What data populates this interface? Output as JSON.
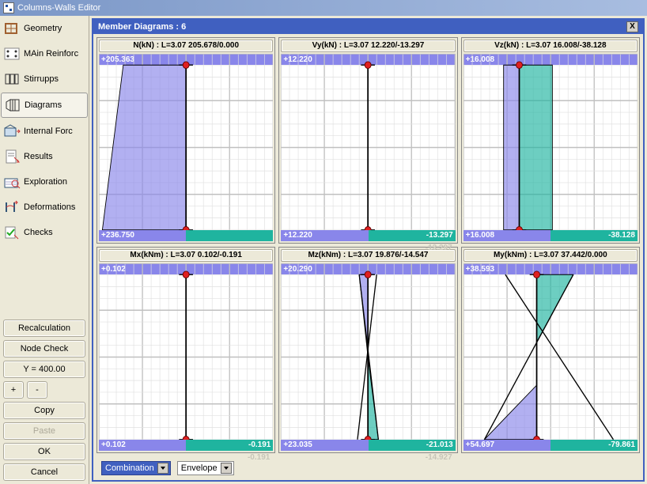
{
  "window_title": "Columns-Walls Editor",
  "panel_title": "Member Diagrams : 6",
  "nav": [
    {
      "label": "Geometry"
    },
    {
      "label": "MAin Reinforc"
    },
    {
      "label": "Stirrupps"
    },
    {
      "label": "Diagrams",
      "active": true
    },
    {
      "label": "Internal Forc"
    },
    {
      "label": "Results"
    },
    {
      "label": "Exploration"
    },
    {
      "label": "Deformations"
    },
    {
      "label": "Checks"
    }
  ],
  "buttons": {
    "recalc": "Recalculation",
    "nodecheck": "Node Check",
    "yfield": "Y = 400.00",
    "plus": "+",
    "minus": "-",
    "copy": "Copy",
    "paste": "Paste",
    "ok": "OK",
    "cancel": "Cancel"
  },
  "dropdowns": {
    "combo": "Combination",
    "envelope": "Envelope"
  },
  "colors": {
    "fill_pos": "#8986ea",
    "fill_neg": "#1fb49f",
    "grid": "#c0c0c0",
    "subgrid": "#e0e0e0",
    "node": "#e02020",
    "line": "#000000",
    "panel_blue": "#4060c0"
  },
  "diagrams": [
    {
      "title": "N(kN) : L=3.07 205.678/0.000",
      "top_left": "+205.363",
      "bot_left": "+236.750",
      "bot_right": "",
      "gray_below": "",
      "shape": "filled",
      "poly_pos": [
        [
          0.5,
          0.06
        ],
        [
          0.5,
          0.94
        ],
        [
          0.02,
          0.94
        ],
        [
          0.14,
          0.06
        ]
      ],
      "poly_neg": null,
      "axis_x": 0.5,
      "nodes": [
        [
          0.5,
          0.06
        ],
        [
          0.5,
          0.94
        ]
      ]
    },
    {
      "title": "Vy(kN) : L=3.07 12.220/-13.297",
      "top_left": "+12.220",
      "bot_left": "+12.220",
      "bot_right": "-13.297",
      "gray_below": "-13.297",
      "shape": "line",
      "poly_pos": null,
      "poly_neg": null,
      "axis_x": 0.5,
      "nodes": [
        [
          0.5,
          0.06
        ],
        [
          0.5,
          0.94
        ]
      ]
    },
    {
      "title": "Vz(kN) : L=3.07 16.008/-38.128",
      "top_left": "+16.008",
      "bot_left": "+16.008",
      "bot_right": "-38.128",
      "gray_below": "",
      "shape": "filled",
      "poly_pos": [
        [
          0.32,
          0.06
        ],
        [
          0.32,
          0.94
        ],
        [
          0.23,
          0.94
        ],
        [
          0.23,
          0.06
        ]
      ],
      "poly_neg": [
        [
          0.32,
          0.06
        ],
        [
          0.32,
          0.94
        ],
        [
          0.51,
          0.94
        ],
        [
          0.51,
          0.06
        ]
      ],
      "axis_x": 0.32,
      "nodes": [
        [
          0.32,
          0.06
        ],
        [
          0.32,
          0.94
        ]
      ]
    },
    {
      "title": "Mx(kNm) : L=3.07 0.102/-0.191",
      "top_left": "+0.102",
      "bot_left": "+0.102",
      "bot_right": "-0.191",
      "gray_below": "-0.191",
      "shape": "line",
      "poly_pos": null,
      "poly_neg": null,
      "axis_x": 0.5,
      "nodes": [
        [
          0.5,
          0.06
        ],
        [
          0.5,
          0.94
        ]
      ]
    },
    {
      "title": "Mz(kNm) : L=3.07 19.876/-14.547",
      "top_left": "+20.290",
      "bot_left": "+23.035",
      "bot_right": "-21.013",
      "gray_below": "-14.927",
      "shape": "crossed",
      "poly_pos": [
        [
          0.5,
          0.06
        ],
        [
          0.45,
          0.06
        ],
        [
          0.5,
          0.5
        ]
      ],
      "poly_neg": [
        [
          0.5,
          0.94
        ],
        [
          0.56,
          0.94
        ],
        [
          0.5,
          0.5
        ]
      ],
      "lines": [
        [
          [
            0.45,
            0.06
          ],
          [
            0.56,
            0.94
          ]
        ],
        [
          [
            0.55,
            0.06
          ],
          [
            0.44,
            0.94
          ]
        ]
      ],
      "axis_x": 0.5,
      "nodes": [
        [
          0.5,
          0.06
        ],
        [
          0.5,
          0.94
        ]
      ]
    },
    {
      "title": "My(kNm) : L=3.07 37.442/0.000",
      "top_left": "+38.593",
      "bot_left": "+54.697",
      "bot_right": "-79.861",
      "gray_below": "",
      "shape": "filled-tri",
      "poly_pos": [
        [
          0.42,
          0.06
        ],
        [
          0.42,
          0.65
        ],
        [
          0.12,
          0.94
        ],
        [
          0.42,
          0.94
        ]
      ],
      "poly_neg": [
        [
          0.42,
          0.06
        ],
        [
          0.63,
          0.06
        ],
        [
          0.42,
          0.42
        ]
      ],
      "lines": [
        [
          [
            0.63,
            0.06
          ],
          [
            0.12,
            0.94
          ]
        ],
        [
          [
            0.24,
            0.06
          ],
          [
            0.86,
            0.94
          ]
        ]
      ],
      "axis_x": 0.42,
      "nodes": [
        [
          0.42,
          0.06
        ],
        [
          0.42,
          0.94
        ]
      ]
    }
  ]
}
